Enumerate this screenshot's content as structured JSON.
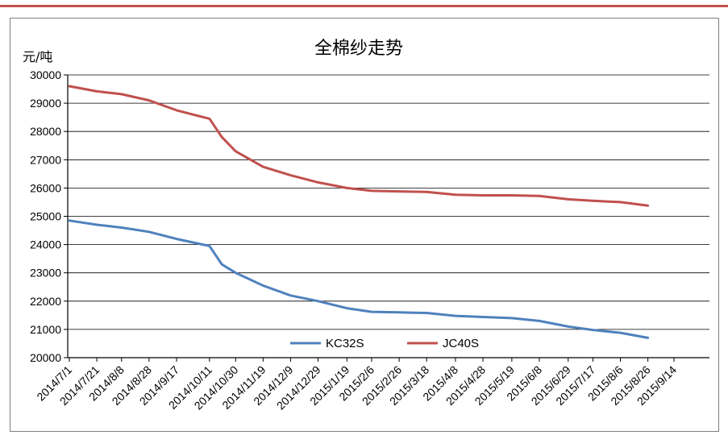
{
  "chart_data": {
    "type": "line",
    "title": "全棉纱走势",
    "ylabel": "元/吨",
    "xlabel": "",
    "ylim": [
      20000,
      30000
    ],
    "ytick_step": 1000,
    "grid": true,
    "legend_placement": "bottom-center",
    "x_tick_labels": [
      "2014/7/1",
      "2014/7/21",
      "2014/8/8",
      "2014/8/28",
      "2014/9/17",
      "2014/10/11",
      "2014/10/30",
      "2014/11/19",
      "2014/12/9",
      "2014/12/29",
      "2015/1/19",
      "2015/2/6",
      "2015/2/26",
      "2015/3/18",
      "2015/4/8",
      "2015/4/28",
      "2015/5/19",
      "2015/6/8",
      "2015/6/29",
      "2015/7/17",
      "2015/8/6",
      "2015/8/26",
      "2015/9/14"
    ],
    "series": [
      {
        "name": "KC32S",
        "color": "#4f81bd",
        "points": [
          [
            "2014/7/1",
            24850
          ],
          [
            "2014/7/21",
            24700
          ],
          [
            "2014/8/8",
            24600
          ],
          [
            "2014/8/28",
            24450
          ],
          [
            "2014/9/17",
            24200
          ],
          [
            "2014/10/11",
            23950
          ],
          [
            "2014/10/20",
            23300
          ],
          [
            "2014/10/30",
            23000
          ],
          [
            "2014/11/19",
            22550
          ],
          [
            "2014/12/9",
            22200
          ],
          [
            "2014/12/29",
            22000
          ],
          [
            "2015/1/19",
            21750
          ],
          [
            "2015/2/6",
            21620
          ],
          [
            "2015/2/26",
            21600
          ],
          [
            "2015/3/18",
            21580
          ],
          [
            "2015/4/8",
            21480
          ],
          [
            "2015/4/28",
            21440
          ],
          [
            "2015/5/19",
            21400
          ],
          [
            "2015/6/8",
            21300
          ],
          [
            "2015/6/29",
            21100
          ],
          [
            "2015/7/17",
            20980
          ],
          [
            "2015/8/6",
            20880
          ],
          [
            "2015/8/26",
            20700
          ]
        ]
      },
      {
        "name": "JC40S",
        "color": "#c0504d",
        "points": [
          [
            "2014/7/1",
            29600
          ],
          [
            "2014/7/21",
            29420
          ],
          [
            "2014/8/8",
            29320
          ],
          [
            "2014/8/28",
            29100
          ],
          [
            "2014/9/17",
            28750
          ],
          [
            "2014/10/11",
            28450
          ],
          [
            "2014/10/20",
            27800
          ],
          [
            "2014/10/30",
            27300
          ],
          [
            "2014/11/19",
            26750
          ],
          [
            "2014/12/9",
            26450
          ],
          [
            "2014/12/29",
            26200
          ],
          [
            "2015/1/19",
            26000
          ],
          [
            "2015/2/6",
            25900
          ],
          [
            "2015/2/26",
            25880
          ],
          [
            "2015/3/18",
            25860
          ],
          [
            "2015/4/8",
            25760
          ],
          [
            "2015/4/28",
            25740
          ],
          [
            "2015/5/19",
            25740
          ],
          [
            "2015/6/8",
            25720
          ],
          [
            "2015/6/29",
            25600
          ],
          [
            "2015/7/17",
            25550
          ],
          [
            "2015/8/6",
            25500
          ],
          [
            "2015/8/26",
            25380
          ]
        ]
      }
    ]
  }
}
